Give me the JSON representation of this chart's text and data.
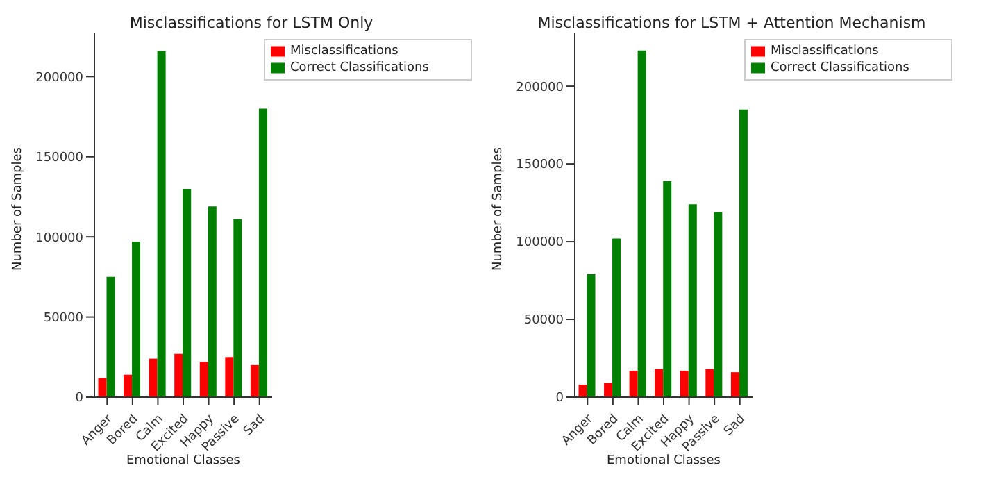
{
  "chart_data": [
    {
      "type": "bar",
      "title": "Misclassifications for LSTM Only",
      "xlabel": "Emotional Classes",
      "ylabel": "Number of Samples",
      "categories": [
        "Anger",
        "Bored",
        "Calm",
        "Excited",
        "Happy",
        "Passive",
        "Sad"
      ],
      "series": [
        {
          "name": "Misclassifications",
          "color": "#ff0000",
          "values": [
            12000,
            14000,
            24000,
            27000,
            22000,
            25000,
            20000
          ]
        },
        {
          "name": "Correct Classifications",
          "color": "#008000",
          "values": [
            75000,
            97000,
            216000,
            130000,
            119000,
            111000,
            180000
          ]
        }
      ],
      "ylim": [
        0,
        227000
      ],
      "yticks": [
        0,
        50000,
        100000,
        150000,
        200000
      ],
      "legend": "top right"
    },
    {
      "type": "bar",
      "title": "Misclassifications for LSTM + Attention Mechanism",
      "xlabel": "Emotional Classes",
      "ylabel": "Number of Samples",
      "categories": [
        "Anger",
        "Bored",
        "Calm",
        "Excited",
        "Happy",
        "Passive",
        "Sad"
      ],
      "series": [
        {
          "name": "Misclassifications",
          "color": "#ff0000",
          "values": [
            8000,
            9000,
            17000,
            18000,
            17000,
            18000,
            16000
          ]
        },
        {
          "name": "Correct Classifications",
          "color": "#008000",
          "values": [
            79000,
            102000,
            223000,
            139000,
            124000,
            119000,
            185000
          ]
        }
      ],
      "ylim": [
        0,
        234000
      ],
      "yticks": [
        0,
        50000,
        100000,
        150000,
        200000
      ],
      "legend": "top right"
    }
  ]
}
